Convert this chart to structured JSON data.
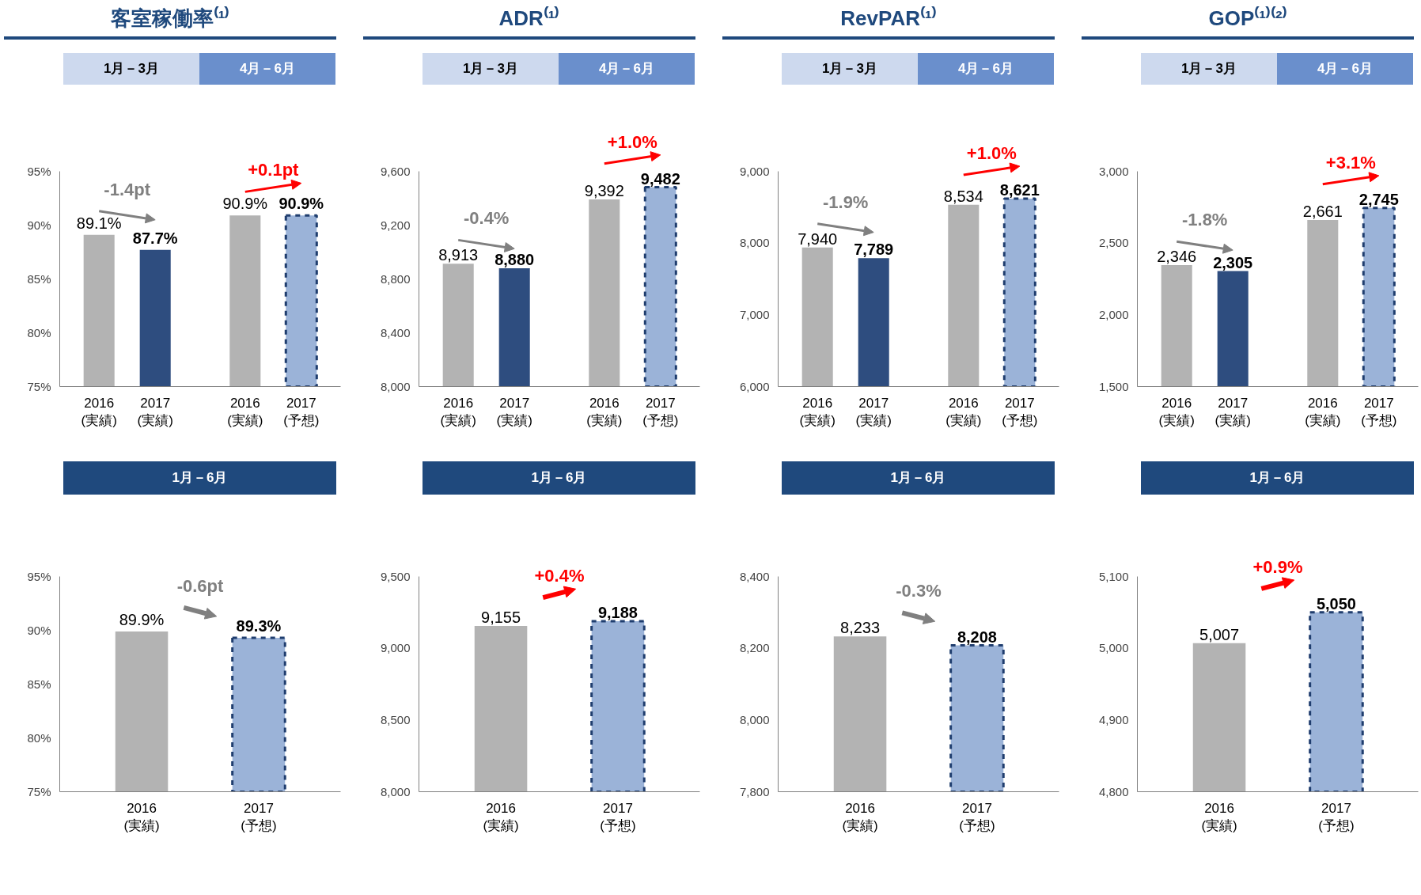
{
  "chart_data": [
    {
      "type": "bar",
      "title": "客室稼働率⁽¹⁾",
      "categories": [
        "2016\n(実績)",
        "2017\n(実績)",
        "2016\n(実績)",
        "2017\n(予想)"
      ],
      "ylim": [
        75,
        95
      ],
      "yticks": [
        {
          "value": 75,
          "label": "75%"
        },
        {
          "value": 80,
          "label": "80%"
        },
        {
          "value": 85,
          "label": "85%"
        },
        {
          "value": 90,
          "label": "90%"
        },
        {
          "value": 95,
          "label": "95%"
        }
      ],
      "series": [
        {
          "colors": [
            "#b3b3b3",
            "#2e4d7f",
            "#b3b3b3",
            null
          ],
          "values": [
            89.1,
            87.7,
            90.9,
            null
          ],
          "value_labels": [
            "89.1%",
            "87.7%",
            "90.9%",
            null
          ]
        },
        {
          "color": "#9bb3d8",
          "line_style": "dashed",
          "values": [
            null,
            null,
            null,
            90.9
          ],
          "value_labels": [
            null,
            null,
            null,
            "90.9%"
          ]
        }
      ],
      "annotations": [
        "1月－3月",
        "4月－6月",
        "-1.4pt",
        "+0.1pt"
      ]
    },
    {
      "type": "bar",
      "title": "ADR⁽¹⁾",
      "categories": [
        "2016\n(実績)",
        "2017\n(実績)",
        "2016\n(実績)",
        "2017\n(予想)"
      ],
      "ylim": [
        8000,
        9600
      ],
      "yticks": [
        {
          "value": 8000,
          "label": "8,000"
        },
        {
          "value": 8400,
          "label": "8,400"
        },
        {
          "value": 8800,
          "label": "8,800"
        },
        {
          "value": 9200,
          "label": "9,200"
        },
        {
          "value": 9600,
          "label": "9,600"
        }
      ],
      "series": [
        {
          "colors": [
            "#b3b3b3",
            "#2e4d7f",
            "#b3b3b3",
            null
          ],
          "values": [
            8913,
            8880,
            9392,
            null
          ],
          "value_labels": [
            "8,913",
            "8,880",
            "9,392",
            null
          ]
        },
        {
          "color": "#9bb3d8",
          "line_style": "dashed",
          "values": [
            null,
            null,
            null,
            9482
          ],
          "value_labels": [
            null,
            null,
            null,
            "9,482"
          ]
        }
      ],
      "annotations": [
        "1月－3月",
        "4月－6月",
        "-0.4%",
        "+1.0%"
      ]
    },
    {
      "type": "bar",
      "title": "RevPAR⁽¹⁾",
      "categories": [
        "2016\n(実績)",
        "2017\n(実績)",
        "2016\n(実績)",
        "2017\n(予想)"
      ],
      "ylim": [
        6000,
        9000
      ],
      "yticks": [
        {
          "value": 6000,
          "label": "6,000"
        },
        {
          "value": 7000,
          "label": "7,000"
        },
        {
          "value": 8000,
          "label": "8,000"
        },
        {
          "value": 9000,
          "label": "9,000"
        }
      ],
      "series": [
        {
          "colors": [
            "#b3b3b3",
            "#2e4d7f",
            "#b3b3b3",
            null
          ],
          "values": [
            7940,
            7789,
            8534,
            null
          ],
          "value_labels": [
            "7,940",
            "7,789",
            "8,534",
            null
          ]
        },
        {
          "color": "#9bb3d8",
          "line_style": "dashed",
          "values": [
            null,
            null,
            null,
            8621
          ],
          "value_labels": [
            null,
            null,
            null,
            "8,621"
          ]
        }
      ],
      "annotations": [
        "1月－3月",
        "4月－6月",
        "-1.9%",
        "+1.0%"
      ]
    },
    {
      "type": "bar",
      "title": "GOP⁽¹⁾⁽²⁾",
      "categories": [
        "2016\n(実績)",
        "2017\n(実績)",
        "2016\n(実績)",
        "2017\n(予想)"
      ],
      "ylim": [
        1500,
        3000
      ],
      "yticks": [
        {
          "value": 1500,
          "label": "1,500"
        },
        {
          "value": 2000,
          "label": "2,000"
        },
        {
          "value": 2500,
          "label": "2,500"
        },
        {
          "value": 3000,
          "label": "3,000"
        }
      ],
      "series": [
        {
          "colors": [
            "#b3b3b3",
            "#2e4d7f",
            "#b3b3b3",
            null
          ],
          "values": [
            2346,
            2305,
            2661,
            null
          ],
          "value_labels": [
            "2,346",
            "2,305",
            "2,661",
            null
          ]
        },
        {
          "color": "#9bb3d8",
          "line_style": "dashed",
          "values": [
            null,
            null,
            null,
            2745
          ],
          "value_labels": [
            null,
            null,
            null,
            "2,745"
          ]
        }
      ],
      "annotations": [
        "1月－3月",
        "4月－6月",
        "-1.8%",
        "+3.1%"
      ]
    },
    {
      "type": "bar",
      "title": "1月－6月",
      "categories": [
        "2016\n(実績)",
        "2017\n(予想)"
      ],
      "ylim": [
        75,
        95
      ],
      "yticks": [
        {
          "value": 75,
          "label": "75%"
        },
        {
          "value": 80,
          "label": "80%"
        },
        {
          "value": 85,
          "label": "85%"
        },
        {
          "value": 90,
          "label": "90%"
        },
        {
          "value": 95,
          "label": "95%"
        }
      ],
      "series": [
        {
          "colors": [
            "#b3b3b3",
            null
          ],
          "values": [
            89.9,
            null
          ],
          "value_labels": [
            "89.9%",
            null
          ]
        },
        {
          "color": "#9bb3d8",
          "line_style": "dashed",
          "values": [
            null,
            89.3
          ],
          "value_labels": [
            null,
            "89.3%"
          ]
        }
      ],
      "annotations": [
        "-0.6pt"
      ]
    },
    {
      "type": "bar",
      "title": "1月－6月",
      "categories": [
        "2016\n(実績)",
        "2017\n(予想)"
      ],
      "ylim": [
        8000,
        9500
      ],
      "yticks": [
        {
          "value": 8000,
          "label": "8,000"
        },
        {
          "value": 8500,
          "label": "8,500"
        },
        {
          "value": 9000,
          "label": "9,000"
        },
        {
          "value": 9500,
          "label": "9,500"
        }
      ],
      "series": [
        {
          "colors": [
            "#b3b3b3",
            null
          ],
          "values": [
            9155,
            null
          ],
          "value_labels": [
            "9,155",
            null
          ]
        },
        {
          "color": "#9bb3d8",
          "line_style": "dashed",
          "values": [
            null,
            9188
          ],
          "value_labels": [
            null,
            "9,188"
          ]
        }
      ],
      "annotations": [
        "+0.4%"
      ]
    },
    {
      "type": "bar",
      "title": "1月－6月",
      "categories": [
        "2016\n(実績)",
        "2017\n(予想)"
      ],
      "ylim": [
        7800,
        8400
      ],
      "yticks": [
        {
          "value": 7800,
          "label": "7,800"
        },
        {
          "value": 8000,
          "label": "8,000"
        },
        {
          "value": 8200,
          "label": "8,200"
        },
        {
          "value": 8400,
          "label": "8,400"
        }
      ],
      "series": [
        {
          "colors": [
            "#b3b3b3",
            null
          ],
          "values": [
            8233,
            null
          ],
          "value_labels": [
            "8,233",
            null
          ]
        },
        {
          "color": "#9bb3d8",
          "line_style": "dashed",
          "values": [
            null,
            8208
          ],
          "value_labels": [
            null,
            "8,208"
          ]
        }
      ],
      "annotations": [
        "-0.3%"
      ]
    },
    {
      "type": "bar",
      "title": "1月－6月",
      "categories": [
        "2016\n(実績)",
        "2017\n(予想)"
      ],
      "ylim": [
        4800,
        5100
      ],
      "yticks": [
        {
          "value": 4800,
          "label": "4,800"
        },
        {
          "value": 4900,
          "label": "4,900"
        },
        {
          "value": 5000,
          "label": "5,000"
        },
        {
          "value": 5100,
          "label": "5,100"
        }
      ],
      "series": [
        {
          "colors": [
            "#b3b3b3",
            null
          ],
          "values": [
            5007,
            null
          ],
          "value_labels": [
            "5,007",
            null
          ]
        },
        {
          "color": "#9bb3d8",
          "line_style": "dashed",
          "values": [
            null,
            5050
          ],
          "value_labels": [
            null,
            "5,050"
          ]
        }
      ],
      "annotations": [
        "+0.9%"
      ]
    }
  ]
}
